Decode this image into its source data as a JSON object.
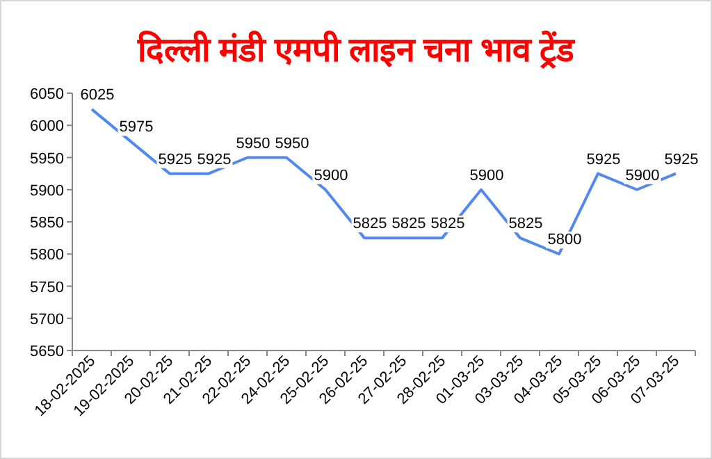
{
  "chart_data": {
    "type": "line",
    "title": "दिल्ली मंडी एमपी लाइन चना भाव ट्रेंड",
    "categories": [
      "18-02-2025",
      "19-02-2025",
      "20-02-25",
      "21-02-25",
      "22-02-25",
      "24-02-25",
      "25-02-25",
      "26-02-25",
      "27-02-25",
      "28-02-25",
      "01-03-25",
      "03-03-25",
      "04-03-25",
      "05-03-25",
      "06-03-25",
      "07-03-25"
    ],
    "series": [
      {
        "color": "#5289f0",
        "values": [
          6025,
          5975,
          5925,
          5925,
          5950,
          5950,
          5900,
          5825,
          5825,
          5825,
          5900,
          5825,
          5800,
          5925,
          5900,
          5925
        ]
      }
    ],
    "ylim": [
      5650,
      6050
    ],
    "yticks": [
      5650,
      5700,
      5750,
      5800,
      5850,
      5900,
      5950,
      6000,
      6050
    ],
    "data_labels": true,
    "grid": false,
    "marker": "none",
    "line_style": "solid"
  }
}
